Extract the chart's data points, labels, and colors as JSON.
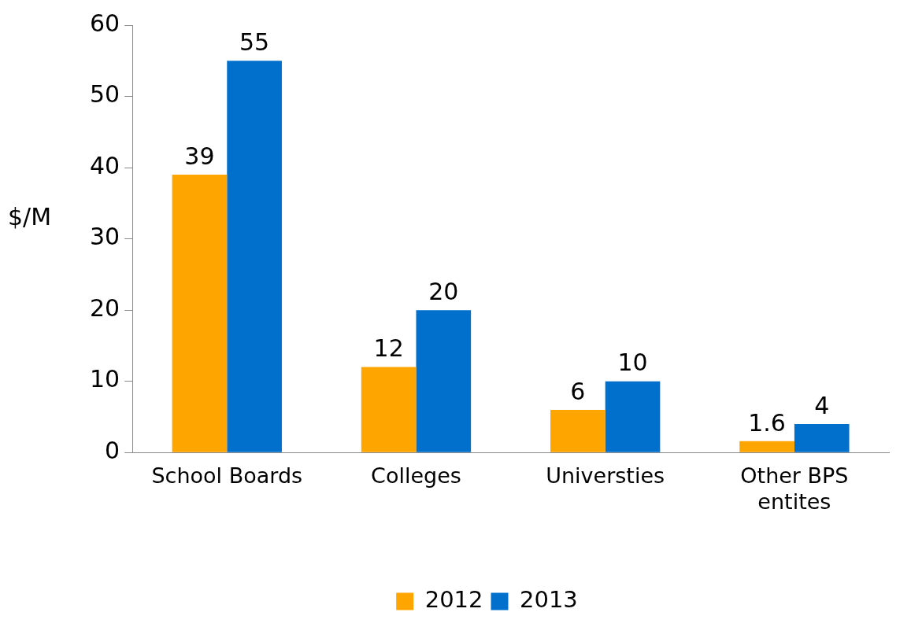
{
  "chart_data": {
    "type": "bar",
    "ylabel": "$/M",
    "categories": [
      "School Boards",
      "Colleges",
      "Universties",
      "Other BPS entites"
    ],
    "series": [
      {
        "name": "2012",
        "color": "#ffa500",
        "values": [
          39,
          12,
          6,
          1.6
        ]
      },
      {
        "name": "2013",
        "color": "#0070cc",
        "values": [
          55,
          20,
          10,
          4
        ]
      }
    ],
    "ylim": [
      0,
      60
    ],
    "yticks": [
      0,
      10,
      20,
      30,
      40,
      50,
      60
    ],
    "data_labels": true,
    "grid": false,
    "legend": "bottom"
  }
}
